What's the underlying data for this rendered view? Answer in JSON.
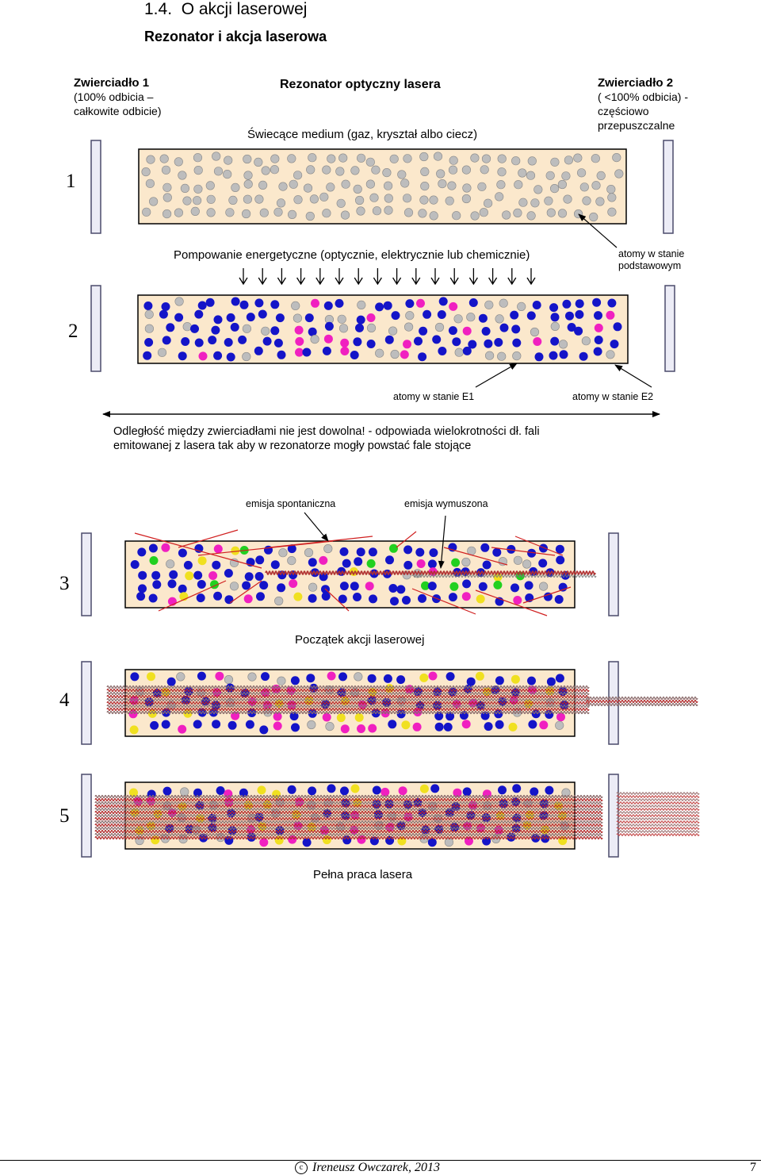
{
  "section": {
    "number": "1.4.",
    "title": "O akcji laserowej"
  },
  "subsection": {
    "title": "Rezonator i akcja laserowa"
  },
  "figure": {
    "mirror1": {
      "title": "Zwierciadło 1",
      "line1": "(100% odbicia –",
      "line2": "całkowite odbicie)"
    },
    "resonator_title": "Rezonator optyczny lasera",
    "mirror2": {
      "title": "Zwierciadło 2",
      "line1": "( <100% odbicia) -",
      "line2": "częściowo",
      "line3": "przepuszczalne"
    },
    "medium_label": "Świecące medium (gaz, kryształ albo ciecz)",
    "pumping_label": "Pompowanie energetyczne (optycznie, elektrycznie lub chemicznie)",
    "ground_atoms": {
      "line1": "atomy  w stanie",
      "line2": "podstawowym"
    },
    "atoms_e1": "atomy  w stanie E1",
    "atoms_e2": "atomy  w stanie E2",
    "distance_note": {
      "line1": "Odległość między zwierciadłami nie jest dowolna! - odpowiada wielokrotności dł. fali",
      "line2": "emitowanej z lasera tak aby w rezonatorze mogły powstać fale stojące"
    },
    "spontaneous_label": "emisja spontaniczna",
    "stimulated_label": "emisja wymuszona",
    "start_label": "Początek akcji laserowej",
    "full_label": "Pełna praca lasera",
    "stages": [
      "1",
      "2",
      "3",
      "4",
      "5"
    ],
    "colors": {
      "medium": "#fbe8cc",
      "ground": "#bdbdbd",
      "e1": "#1414c8",
      "e2": "#f020c0",
      "spontaneous": "#22d020",
      "stimulated": "#f0e020",
      "ray": "#d02020",
      "mirror": "#ececf6"
    }
  },
  "footer": {
    "author": "Ireneusz Owczarek, 2013",
    "page": "7"
  }
}
